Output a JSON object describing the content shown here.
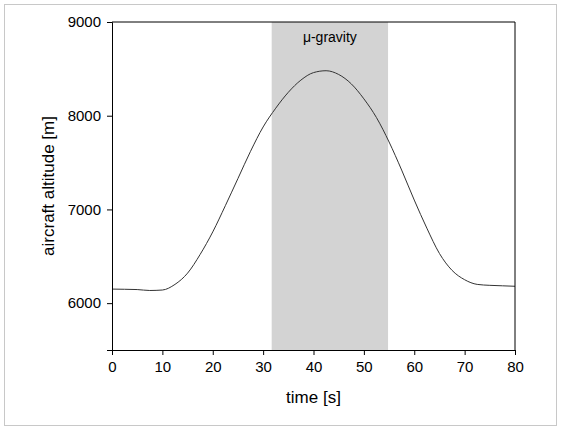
{
  "chart_data": {
    "type": "line",
    "x_label": "time [s]",
    "y_label": "aircraft altitude [m]",
    "x": [
      0,
      2.5,
      5,
      7.5,
      10,
      12.5,
      15,
      17.5,
      20,
      22.5,
      25,
      27.5,
      30,
      32.5,
      35,
      37.5,
      40,
      42.5,
      45,
      47.5,
      50,
      52.5,
      55,
      57.5,
      60,
      62.5,
      65,
      67.5,
      70,
      72.5,
      75,
      77.5,
      80
    ],
    "values": [
      6150,
      6148,
      6145,
      6135,
      6140,
      6200,
      6320,
      6520,
      6760,
      7040,
      7330,
      7620,
      7880,
      8080,
      8250,
      8380,
      8460,
      8480,
      8440,
      8340,
      8180,
      7980,
      7720,
      7420,
      7100,
      6800,
      6530,
      6350,
      6250,
      6200,
      6190,
      6185,
      6180
    ],
    "color": "#333333",
    "xlim": [
      0,
      80
    ],
    "xticks": [
      0,
      10,
      20,
      30,
      40,
      50,
      60,
      70,
      80
    ],
    "ylim": [
      5500,
      9000
    ],
    "yticks": [
      6000,
      7000,
      8000,
      9000
    ],
    "grid": false,
    "shaded_regions": [
      {
        "label": "μ-gravity",
        "xlim": [
          31.7,
          54.8
        ],
        "color": "#d3d3d3"
      }
    ]
  }
}
